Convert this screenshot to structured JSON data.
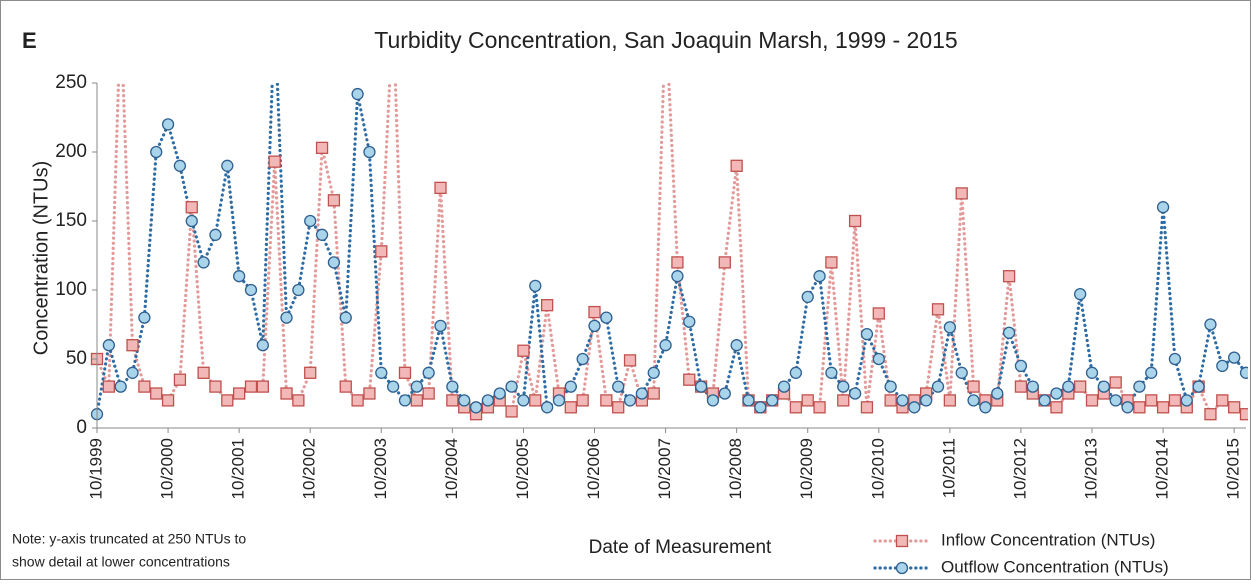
{
  "chart_data": {
    "type": "line",
    "panel_label": "E",
    "title": "Turbidity Concentration, San Joaquin Marsh, 1999 - 2015",
    "x_label": "Date of Measurement",
    "y_label": "Concentration (NTUs)",
    "note": [
      "Note: y-axis truncated at  250 NTUs to",
      "show detail at lower concentrations"
    ],
    "xlim": [
      "1999-10",
      "2015-12"
    ],
    "ylim": [
      0,
      250
    ],
    "yticks": [
      0,
      50,
      100,
      150,
      200,
      250
    ],
    "xticks": [
      {
        "value": "1999-10",
        "label": "10/1999"
      },
      {
        "value": "2000-10",
        "label": "10/2000"
      },
      {
        "value": "2001-10",
        "label": "10/2001"
      },
      {
        "value": "2002-10",
        "label": "10/2002"
      },
      {
        "value": "2003-10",
        "label": "10/2003"
      },
      {
        "value": "2004-10",
        "label": "10/2004"
      },
      {
        "value": "2005-10",
        "label": "10/2005"
      },
      {
        "value": "2006-10",
        "label": "10/2006"
      },
      {
        "value": "2007-10",
        "label": "10/2007"
      },
      {
        "value": "2008-10",
        "label": "10/2008"
      },
      {
        "value": "2009-10",
        "label": "10/2009"
      },
      {
        "value": "2010-10",
        "label": "10/2010"
      },
      {
        "value": "2011-10",
        "label": "10/2011"
      },
      {
        "value": "2012-10",
        "label": "10/2012"
      },
      {
        "value": "2013-10",
        "label": "10/2013"
      },
      {
        "value": "2014-10",
        "label": "10/2014"
      },
      {
        "value": "2015-10",
        "label": "10/2015"
      }
    ],
    "x": [
      "1999-10",
      "1999-12",
      "2000-02",
      "2000-04",
      "2000-06",
      "2000-08",
      "2000-10",
      "2000-12",
      "2001-02",
      "2001-04",
      "2001-06",
      "2001-08",
      "2001-10",
      "2001-12",
      "2002-02",
      "2002-04",
      "2002-06",
      "2002-08",
      "2002-10",
      "2002-12",
      "2003-02",
      "2003-04",
      "2003-06",
      "2003-08",
      "2003-10",
      "2003-12",
      "2004-02",
      "2004-04",
      "2004-06",
      "2004-08",
      "2004-10",
      "2004-12",
      "2005-02",
      "2005-04",
      "2005-06",
      "2005-08",
      "2005-10",
      "2005-12",
      "2006-02",
      "2006-04",
      "2006-06",
      "2006-08",
      "2006-10",
      "2006-12",
      "2007-02",
      "2007-04",
      "2007-06",
      "2007-08",
      "2007-10",
      "2007-12",
      "2008-02",
      "2008-04",
      "2008-06",
      "2008-08",
      "2008-10",
      "2008-12",
      "2009-02",
      "2009-04",
      "2009-06",
      "2009-08",
      "2009-10",
      "2009-12",
      "2010-02",
      "2010-04",
      "2010-06",
      "2010-08",
      "2010-10",
      "2010-12",
      "2011-02",
      "2011-04",
      "2011-06",
      "2011-08",
      "2011-10",
      "2011-12",
      "2012-02",
      "2012-04",
      "2012-06",
      "2012-08",
      "2012-10",
      "2012-12",
      "2013-02",
      "2013-04",
      "2013-06",
      "2013-08",
      "2013-10",
      "2013-12",
      "2014-02",
      "2014-04",
      "2014-06",
      "2014-08",
      "2014-10",
      "2014-12",
      "2015-02",
      "2015-04",
      "2015-06",
      "2015-08",
      "2015-10",
      "2015-12"
    ],
    "series": [
      {
        "name": "Inflow Concentration (NTUs)",
        "color": "#e39a9a",
        "marker": "square",
        "marker_fill": "#f2b8b8",
        "marker_stroke": "#c0504d",
        "values": [
          50,
          30,
          300,
          60,
          30,
          25,
          20,
          35,
          160,
          40,
          30,
          20,
          25,
          30,
          30,
          193,
          25,
          20,
          40,
          203,
          165,
          30,
          20,
          25,
          128,
          300,
          40,
          20,
          25,
          174,
          20,
          15,
          10,
          15,
          20,
          12,
          56,
          20,
          89,
          25,
          15,
          20,
          84,
          20,
          15,
          49,
          20,
          25,
          300,
          120,
          35,
          30,
          25,
          120,
          190,
          20,
          15,
          20,
          25,
          15,
          20,
          15,
          120,
          20,
          150,
          15,
          83,
          20,
          15,
          20,
          25,
          86,
          20,
          170,
          30,
          20,
          20,
          110,
          30,
          25,
          20,
          15,
          25,
          30,
          20,
          25,
          33,
          20,
          15,
          20,
          15,
          20,
          15,
          30,
          10,
          20,
          15,
          10
        ]
      },
      {
        "name": "Outflow Concentration (NTUs)",
        "color": "#2e6ca4",
        "marker": "circle",
        "marker_fill": "#a9d4ea",
        "marker_stroke": "#2e5f8f",
        "values": [
          10,
          60,
          30,
          40,
          80,
          200,
          220,
          190,
          150,
          120,
          140,
          190,
          110,
          100,
          60,
          300,
          80,
          100,
          150,
          140,
          120,
          80,
          242,
          200,
          40,
          30,
          20,
          30,
          40,
          74,
          30,
          20,
          15,
          20,
          25,
          30,
          20,
          103,
          15,
          20,
          30,
          50,
          74,
          80,
          30,
          20,
          25,
          40,
          60,
          110,
          77,
          30,
          20,
          25,
          60,
          20,
          15,
          20,
          30,
          40,
          95,
          110,
          40,
          30,
          25,
          68,
          50,
          30,
          20,
          15,
          20,
          30,
          73,
          40,
          20,
          15,
          25,
          69,
          45,
          30,
          20,
          25,
          30,
          97,
          40,
          30,
          20,
          15,
          30,
          40,
          160,
          50,
          20,
          30,
          75,
          45,
          51,
          40
        ]
      }
    ]
  }
}
